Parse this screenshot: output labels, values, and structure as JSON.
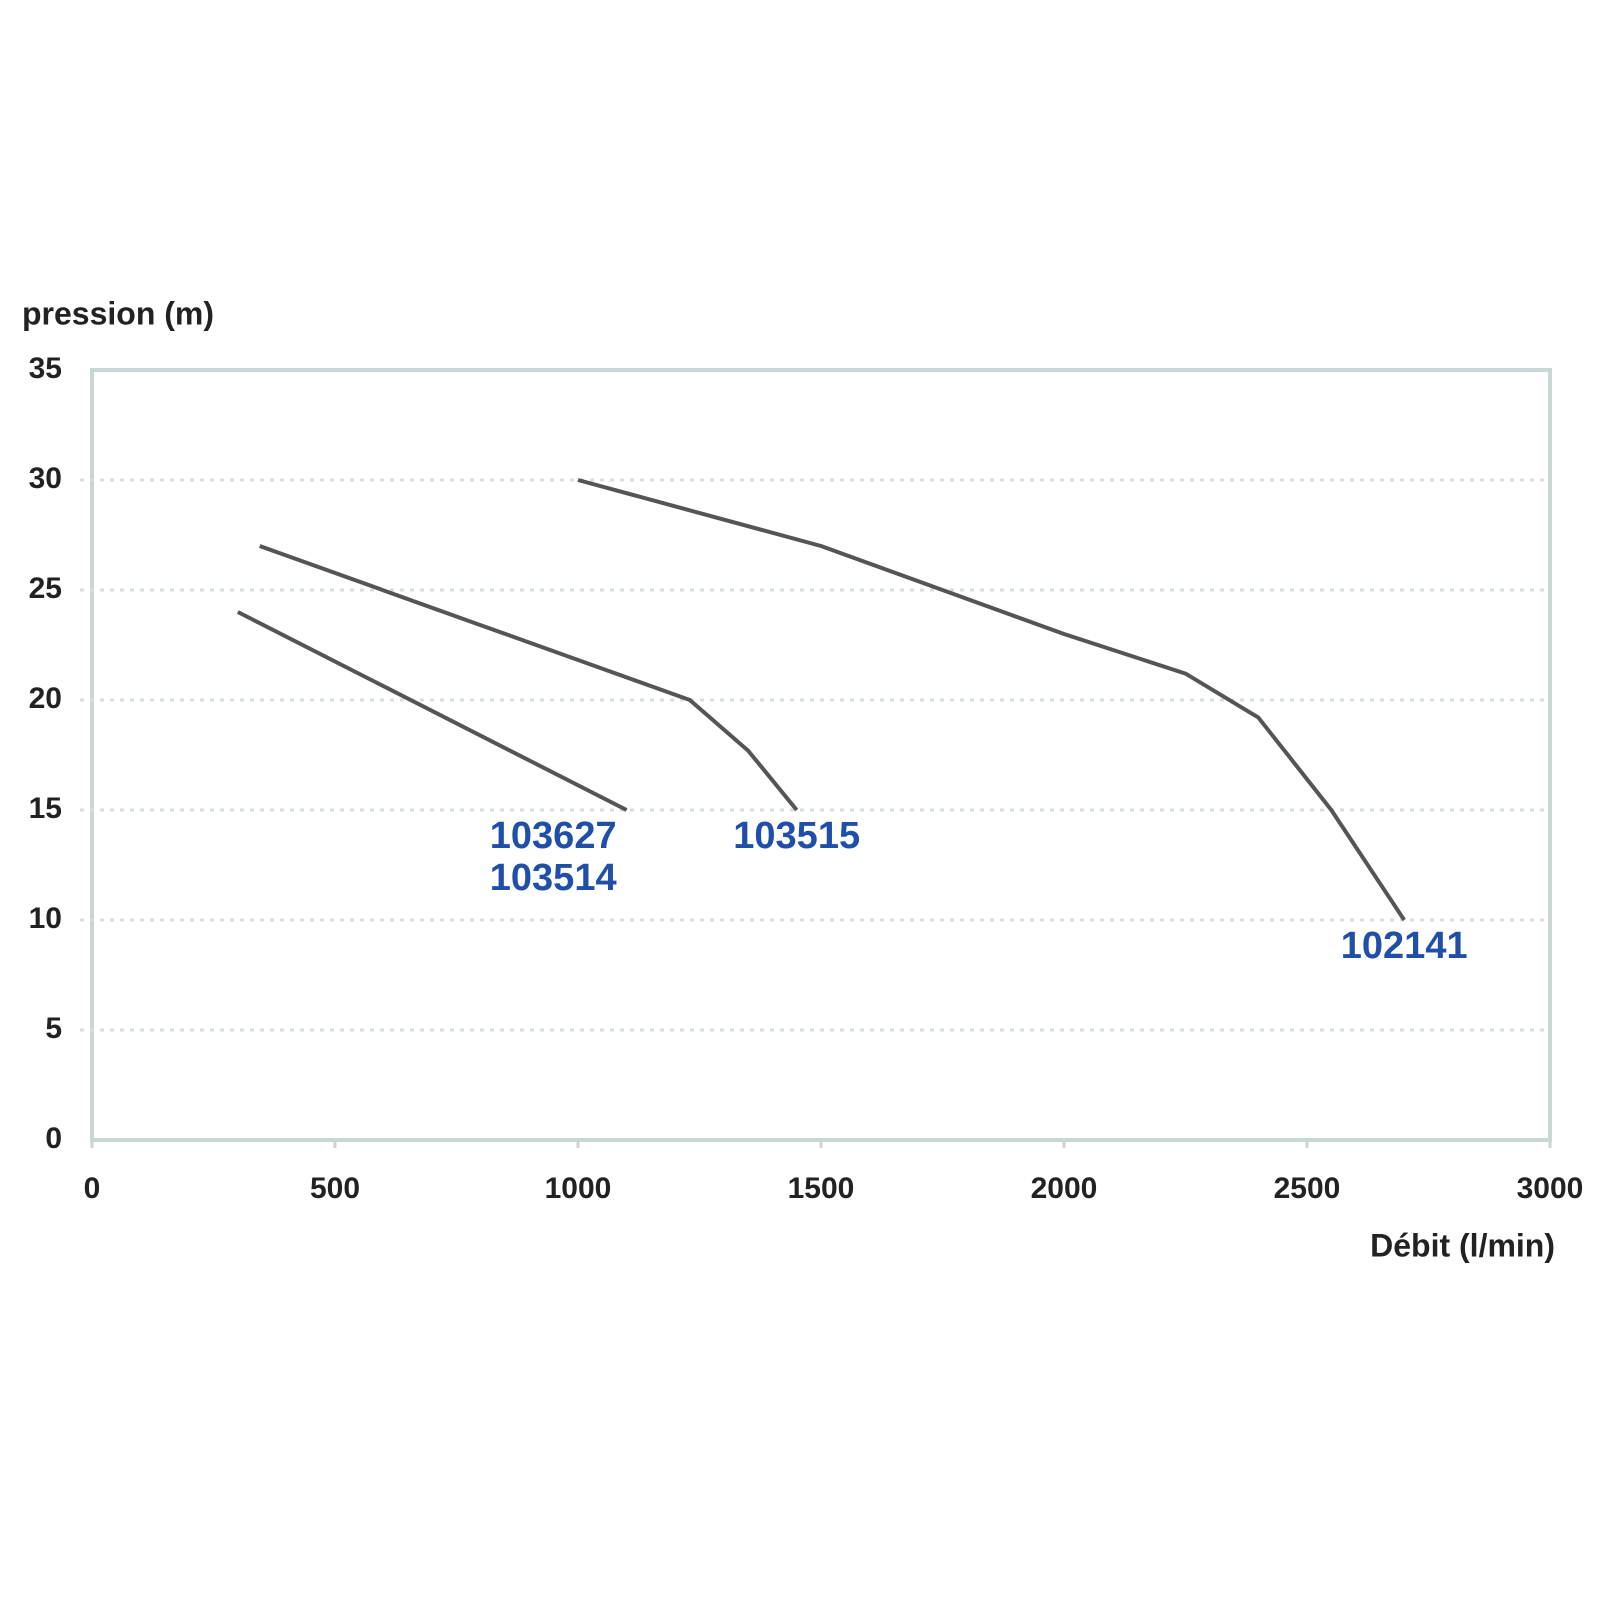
{
  "chart_data": {
    "type": "line",
    "y_label": "pression (m)",
    "x_label": "Débit (l/min)",
    "xlim": [
      0,
      3000
    ],
    "xticks": [
      0,
      500,
      1000,
      1500,
      2000,
      2500,
      3000
    ],
    "ylim": [
      0,
      35
    ],
    "yticks": [
      0,
      5,
      10,
      15,
      20,
      25,
      30,
      35
    ],
    "grid": true,
    "label_color": "#1f4fa8",
    "series": [
      {
        "labels": [
          "103627",
          "103514"
        ],
        "color": "#555555",
        "x": [
          300,
          1100
        ],
        "values": [
          24,
          15
        ]
      },
      {
        "labels": [
          "103515"
        ],
        "color": "#555555",
        "x": [
          345,
          800,
          1230,
          1350,
          1450
        ],
        "values": [
          27,
          23.4,
          20,
          17.7,
          15
        ]
      },
      {
        "labels": [
          "102141"
        ],
        "color": "#555555",
        "x": [
          1000,
          1500,
          2000,
          2250,
          2400,
          2550,
          2700
        ],
        "values": [
          30,
          27,
          23,
          21.2,
          19.2,
          15,
          10
        ]
      }
    ]
  }
}
